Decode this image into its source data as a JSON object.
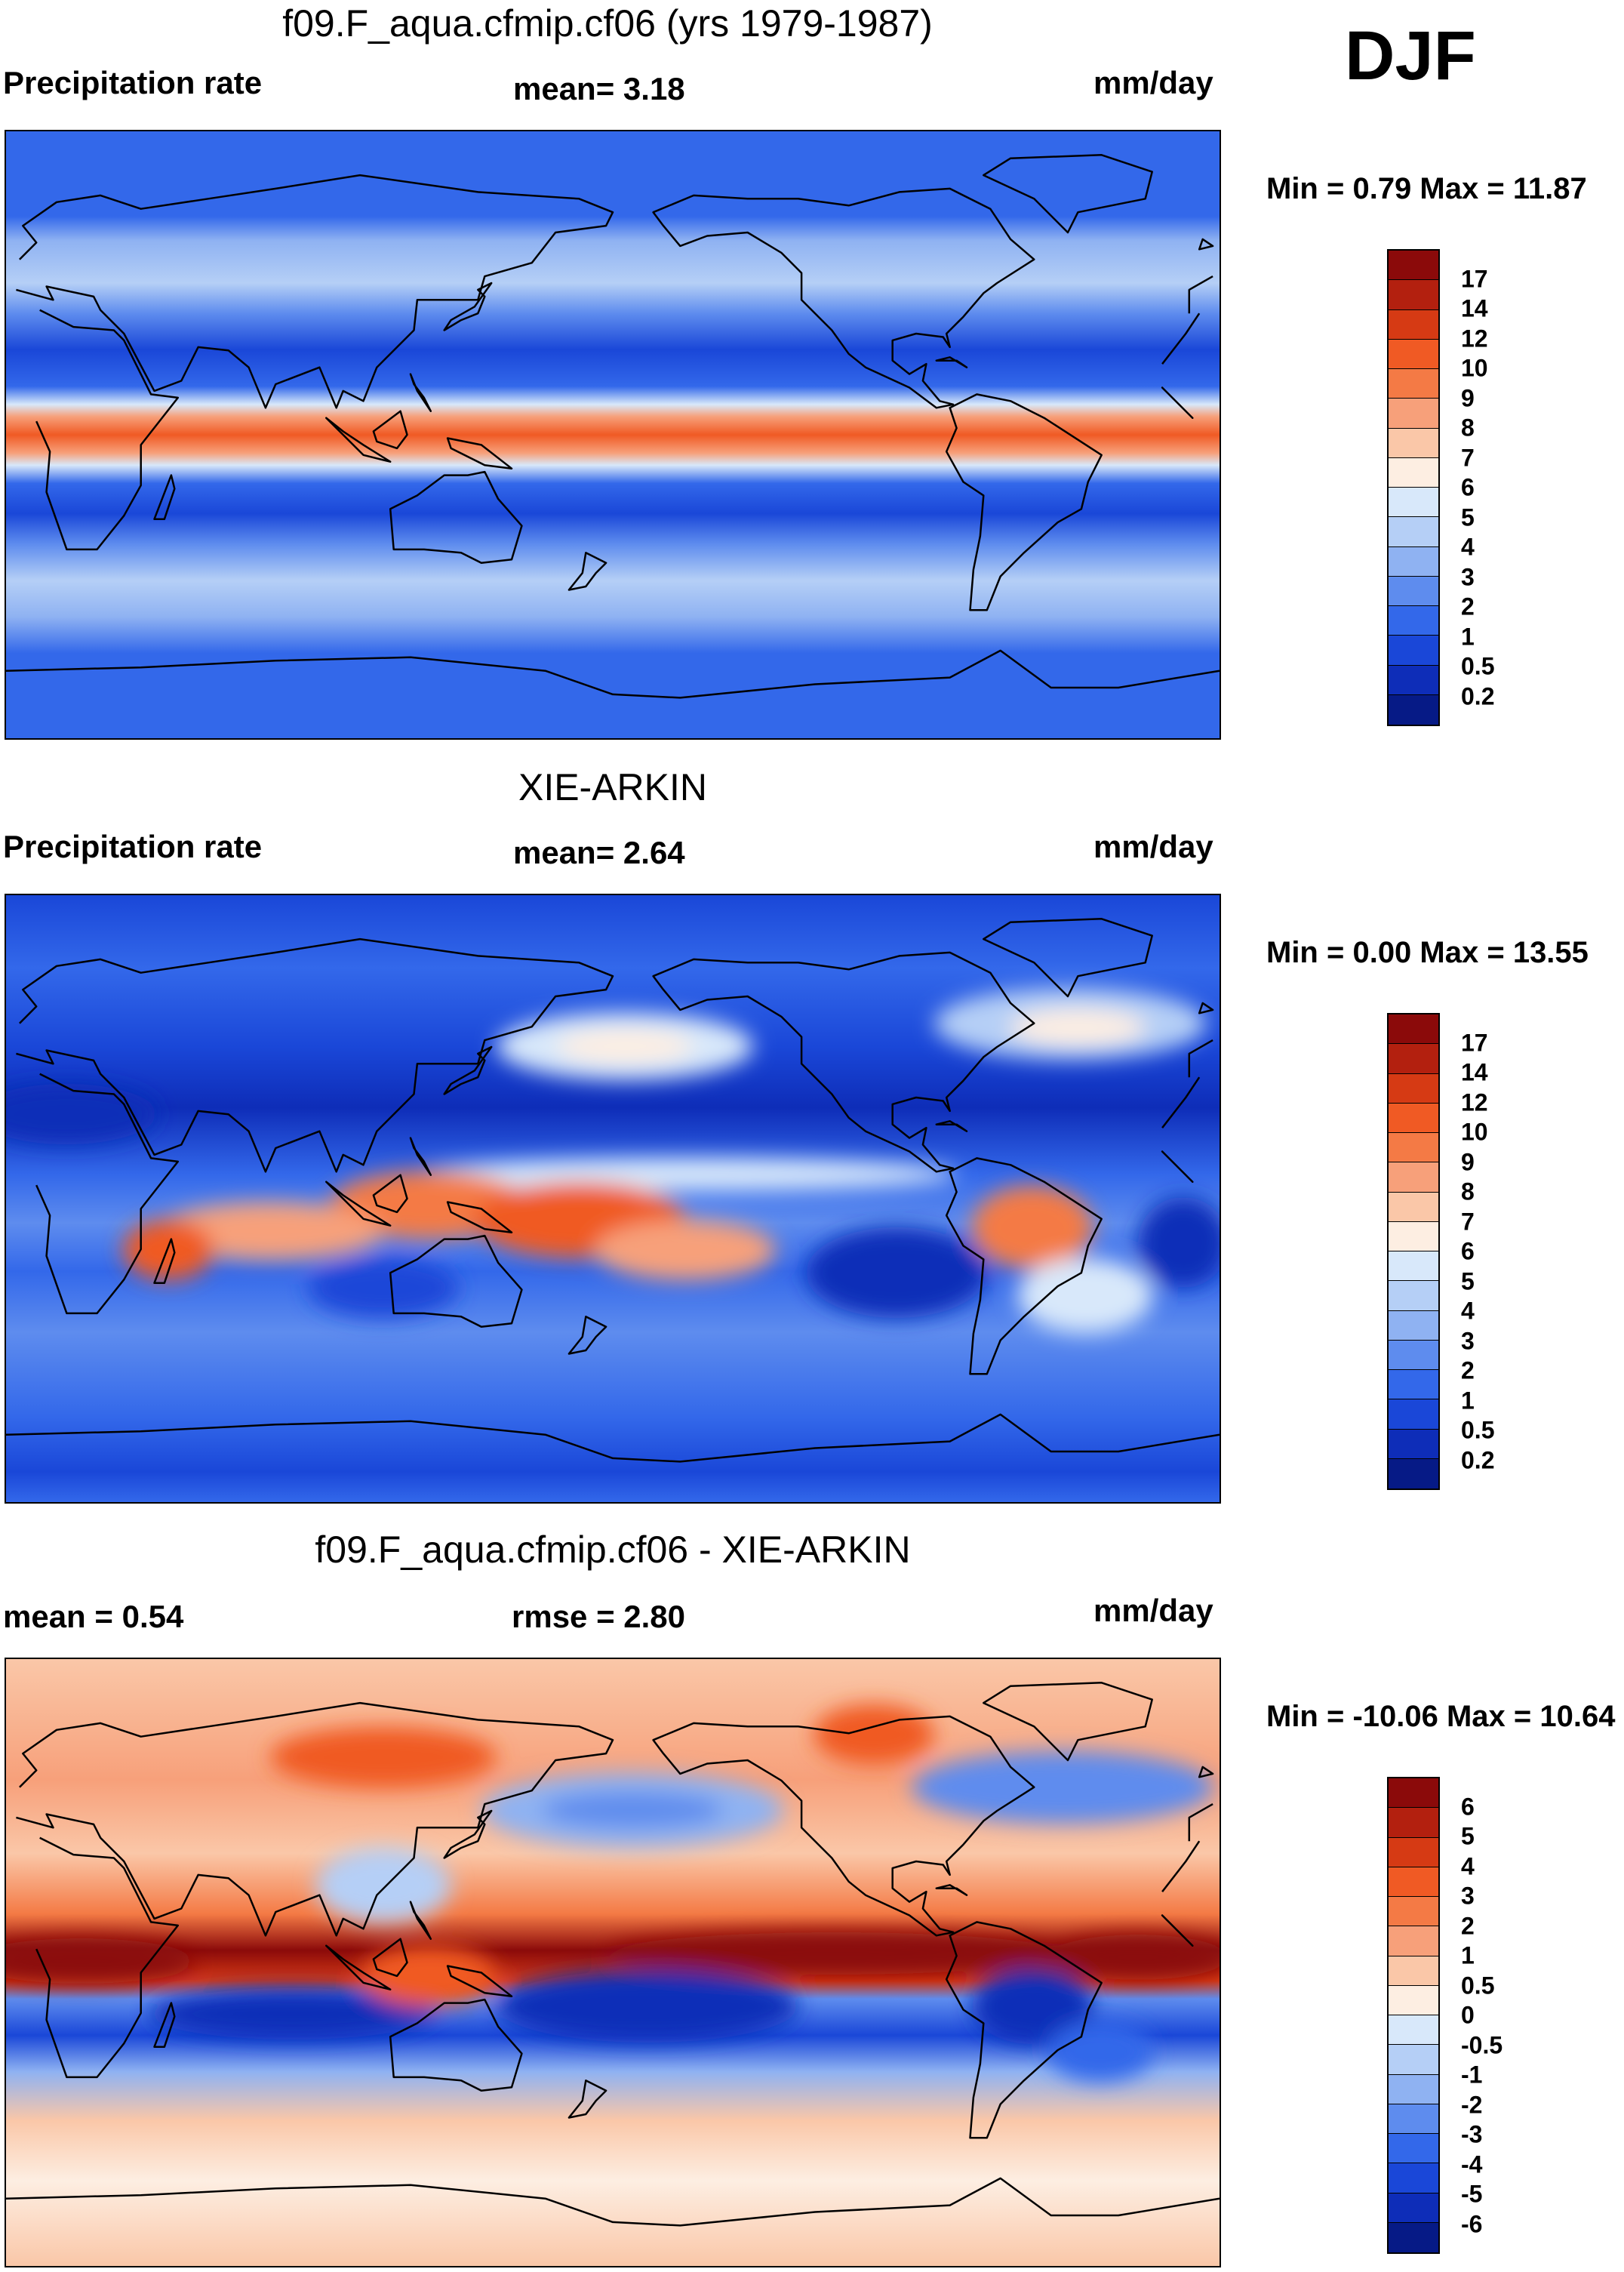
{
  "season": "DJF",
  "panels": [
    {
      "id": "model",
      "title": "f09.F_aqua.cfmip.cf06 (yrs 1979-1987)",
      "left_label": "Precipitation rate",
      "center_label": "mean=   3.18",
      "units": "mm/day",
      "minmax": "Min =    0.79 Max =  11.87",
      "colorbar": {
        "labels": [
          "17",
          "14",
          "12",
          "10",
          "9",
          "8",
          "7",
          "6",
          "5",
          "4",
          "3",
          "2",
          "1",
          "0.5",
          "0.2"
        ],
        "colors": [
          "#8b0a0a",
          "#b3200f",
          "#d63a14",
          "#f05a24",
          "#f47a45",
          "#f7a07a",
          "#fac7a8",
          "#fdeee2",
          "#d8e8fa",
          "#b5cff6",
          "#8fb2f2",
          "#5e8cee",
          "#3368ea",
          "#1a47d8",
          "#0e2db8",
          "#061a86"
        ]
      }
    },
    {
      "id": "obs",
      "title": "XIE-ARKIN",
      "left_label": "Precipitation rate",
      "center_label": "mean=   2.64",
      "units": "mm/day",
      "minmax": "Min =    0.00 Max =  13.55",
      "colorbar": {
        "labels": [
          "17",
          "14",
          "12",
          "10",
          "9",
          "8",
          "7",
          "6",
          "5",
          "4",
          "3",
          "2",
          "1",
          "0.5",
          "0.2"
        ],
        "colors": [
          "#8b0a0a",
          "#b3200f",
          "#d63a14",
          "#f05a24",
          "#f47a45",
          "#f7a07a",
          "#fac7a8",
          "#fdeee2",
          "#d8e8fa",
          "#b5cff6",
          "#8fb2f2",
          "#5e8cee",
          "#3368ea",
          "#1a47d8",
          "#0e2db8",
          "#061a86"
        ]
      }
    },
    {
      "id": "diff",
      "title": "f09.F_aqua.cfmip.cf06 - XIE-ARKIN",
      "left_label": "mean =   0.54",
      "center_label": "rmse =   2.80",
      "units": "mm/day",
      "minmax": "Min = -10.06 Max =  10.64",
      "colorbar": {
        "labels": [
          "6",
          "5",
          "4",
          "3",
          "2",
          "1",
          "0.5",
          "0",
          "-0.5",
          "-1",
          "-2",
          "-3",
          "-4",
          "-5",
          "-6"
        ],
        "colors": [
          "#8b0a0a",
          "#b3200f",
          "#d63a14",
          "#f05a24",
          "#f47a45",
          "#f7a07a",
          "#fac7a8",
          "#fdeee2",
          "#d8e8fa",
          "#b5cff6",
          "#8fb2f2",
          "#5e8cee",
          "#3368ea",
          "#1a47d8",
          "#0e2db8",
          "#061a86"
        ]
      }
    }
  ]
}
